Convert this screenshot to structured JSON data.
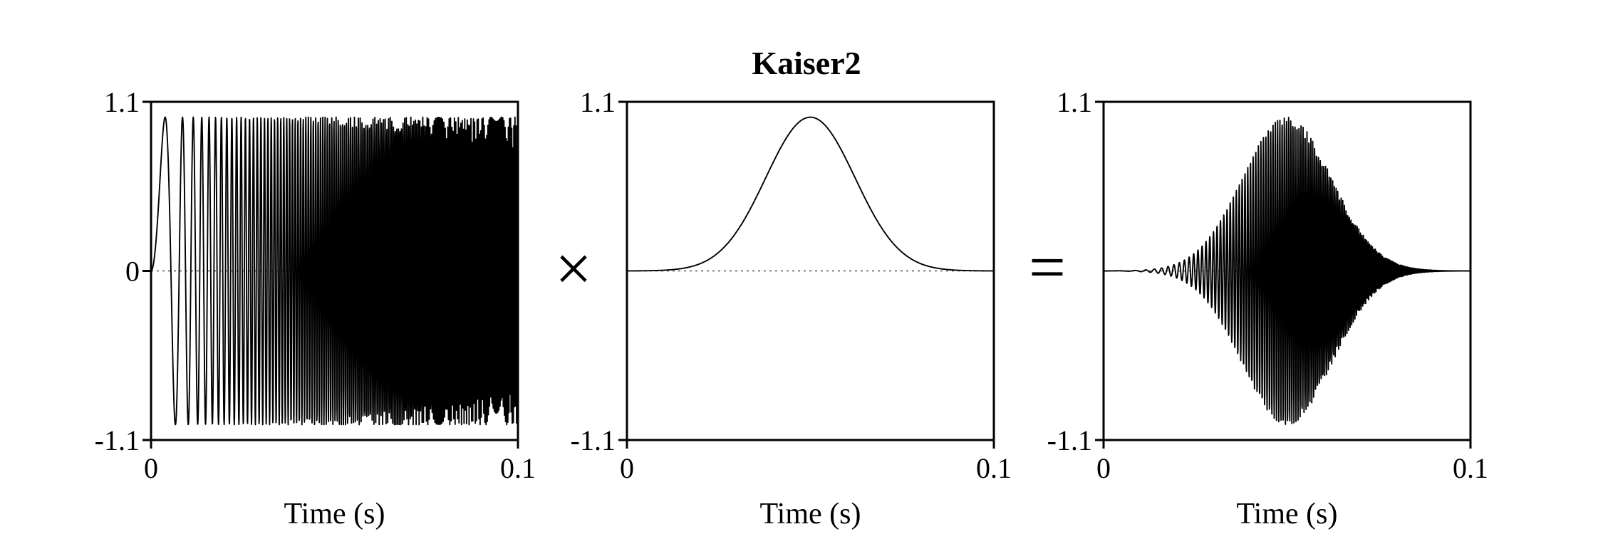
{
  "title": "Kaiser2",
  "operators": {
    "times": "×",
    "equals": "="
  },
  "chart_data": [
    {
      "type": "line",
      "xlabel": "Time (s)",
      "ylabel": "",
      "xlim": [
        0,
        0.1
      ],
      "ylim": [
        -1.1,
        1.1
      ],
      "xticks": [
        "0",
        "0.1"
      ],
      "yticks": [
        "1.1",
        "0",
        "-1.1"
      ],
      "grid": false,
      "legend": "none",
      "series": [
        {
          "kind": "quadratic-chirp-sine",
          "function": "sin(2*pi*(f0*t + 0.5*k*t^2))",
          "f0_hz": 0,
          "chirp_rate_hz_per_s": 34000,
          "amplitude": 1,
          "t_range": [
            0,
            0.1
          ]
        }
      ]
    },
    {
      "type": "line",
      "xlabel": "Time (s)",
      "ylabel": "",
      "xlim": [
        0,
        0.1
      ],
      "ylim": [
        -1.1,
        1.1
      ],
      "xticks": [
        "0",
        "0.1"
      ],
      "yticks": [
        "1.1",
        "-1.1"
      ],
      "grid": false,
      "legend": "none",
      "series": [
        {
          "kind": "kaiser2-window",
          "function": "exp(-((t - 0.05)/0.0172)^2)",
          "center_s": 0.05,
          "peak": 1,
          "t_range": [
            0,
            0.1
          ]
        }
      ]
    },
    {
      "type": "line",
      "xlabel": "Time (s)",
      "ylabel": "",
      "xlim": [
        0,
        0.1
      ],
      "ylim": [
        -1.1,
        1.1
      ],
      "xticks": [
        "0",
        "0.1"
      ],
      "yticks": [
        "1.1",
        "-1.1"
      ],
      "grid": false,
      "legend": "none",
      "series": [
        {
          "kind": "windowed-chirp",
          "function": "chirp(t) * window(t)",
          "t_range": [
            0,
            0.1
          ]
        }
      ]
    }
  ]
}
